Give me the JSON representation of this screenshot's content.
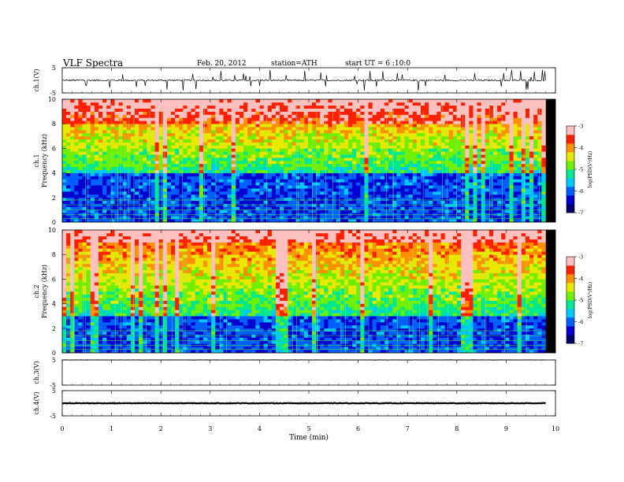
{
  "header": {
    "title": "VLF Spectra",
    "date": "Feb. 20, 2012",
    "station": "station=ATH",
    "start": "start UT = 6 :10:0"
  },
  "chart_data": [
    {
      "type": "line",
      "panel": "ch1-waveform",
      "ylabel": "ch.1(V)",
      "ylim": [
        -5,
        5
      ],
      "yticks": [
        "5",
        "-5"
      ],
      "baseline": 0,
      "data_extent_min": 9.8
    },
    {
      "type": "heatmap",
      "panel": "ch1-spectrogram",
      "ylabel": "ch.1",
      "ylabel2": "Frequency (kHz)",
      "ylim": [
        0,
        10
      ],
      "yticks": [
        "0",
        "2",
        "4",
        "6",
        "8",
        "10"
      ],
      "colorbar": {
        "label": "log(PSD(V²/Hz)",
        "range": [
          -7,
          -3
        ],
        "ticks": [
          "-3",
          "-4",
          "-5",
          "-6",
          "-7"
        ]
      },
      "description_levels": {
        "noise_floor_below_kHz": 4,
        "hot_above_kHz": 8
      }
    },
    {
      "type": "heatmap",
      "panel": "ch2-spectrogram",
      "ylabel": "ch.2",
      "ylabel2": "Frequency (kHz)",
      "ylim": [
        0,
        10
      ],
      "yticks": [
        "0",
        "2",
        "4",
        "6",
        "8",
        "10"
      ],
      "colorbar": {
        "label": "log(PSD(V²/Hz)",
        "range": [
          -7,
          -3
        ],
        "ticks": [
          "-3",
          "-4",
          "-5",
          "-6",
          "-7"
        ]
      },
      "description_levels": {
        "noise_floor_below_kHz": 3,
        "hot_above_kHz": 9
      }
    },
    {
      "type": "line",
      "panel": "ch3-waveform",
      "ylabel": "ch.3(V)",
      "ylim": [
        -5,
        5
      ],
      "yticks": [
        "5",
        "-5"
      ],
      "baseline": 5
    },
    {
      "type": "line",
      "panel": "ch4-waveform",
      "ylabel": "ch.4(V)",
      "ylim": [
        -5,
        5
      ],
      "yticks": [
        "5",
        "-5"
      ],
      "baseline": 0
    }
  ],
  "xaxis": {
    "label": "Time (min)",
    "xlim": [
      0,
      10
    ],
    "ticks": [
      "0",
      "1",
      "2",
      "3",
      "4",
      "5",
      "6",
      "7",
      "8",
      "9",
      "10"
    ]
  }
}
